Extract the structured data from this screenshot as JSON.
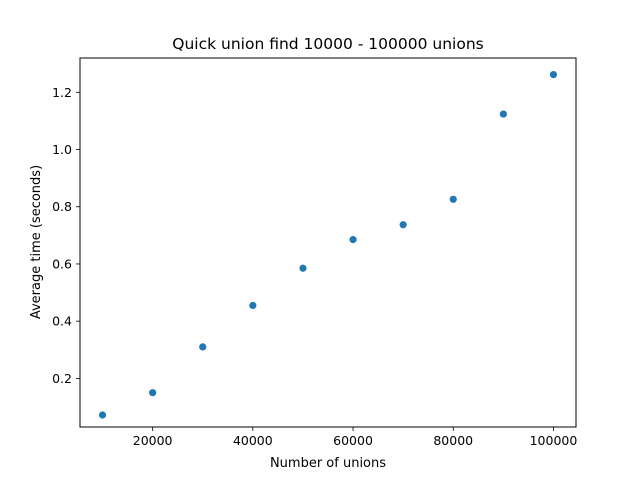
{
  "chart_data": {
    "type": "scatter",
    "title": "Quick union find 10000 - 100000 unions",
    "xlabel": "Number of unions",
    "ylabel": "Average time (seconds)",
    "xlim": [
      5500,
      104500
    ],
    "ylim": [
      0.03,
      1.32
    ],
    "xticks": [
      20000,
      40000,
      60000,
      80000,
      100000
    ],
    "xtick_labels": [
      "20000",
      "40000",
      "60000",
      "80000",
      "100000"
    ],
    "yticks": [
      0.2,
      0.4,
      0.6,
      0.8,
      1.0,
      1.2
    ],
    "ytick_labels": [
      "0.2",
      "0.4",
      "0.6",
      "0.8",
      "1.0",
      "1.2"
    ],
    "grid": false,
    "color": "#1f77b4",
    "series": [
      {
        "x": [
          10000,
          20000,
          30000,
          40000,
          50000,
          60000,
          70000,
          80000,
          90000,
          100000
        ],
        "y": [
          0.072,
          0.15,
          0.31,
          0.455,
          0.585,
          0.685,
          0.737,
          0.826,
          1.124,
          1.262
        ]
      }
    ]
  }
}
